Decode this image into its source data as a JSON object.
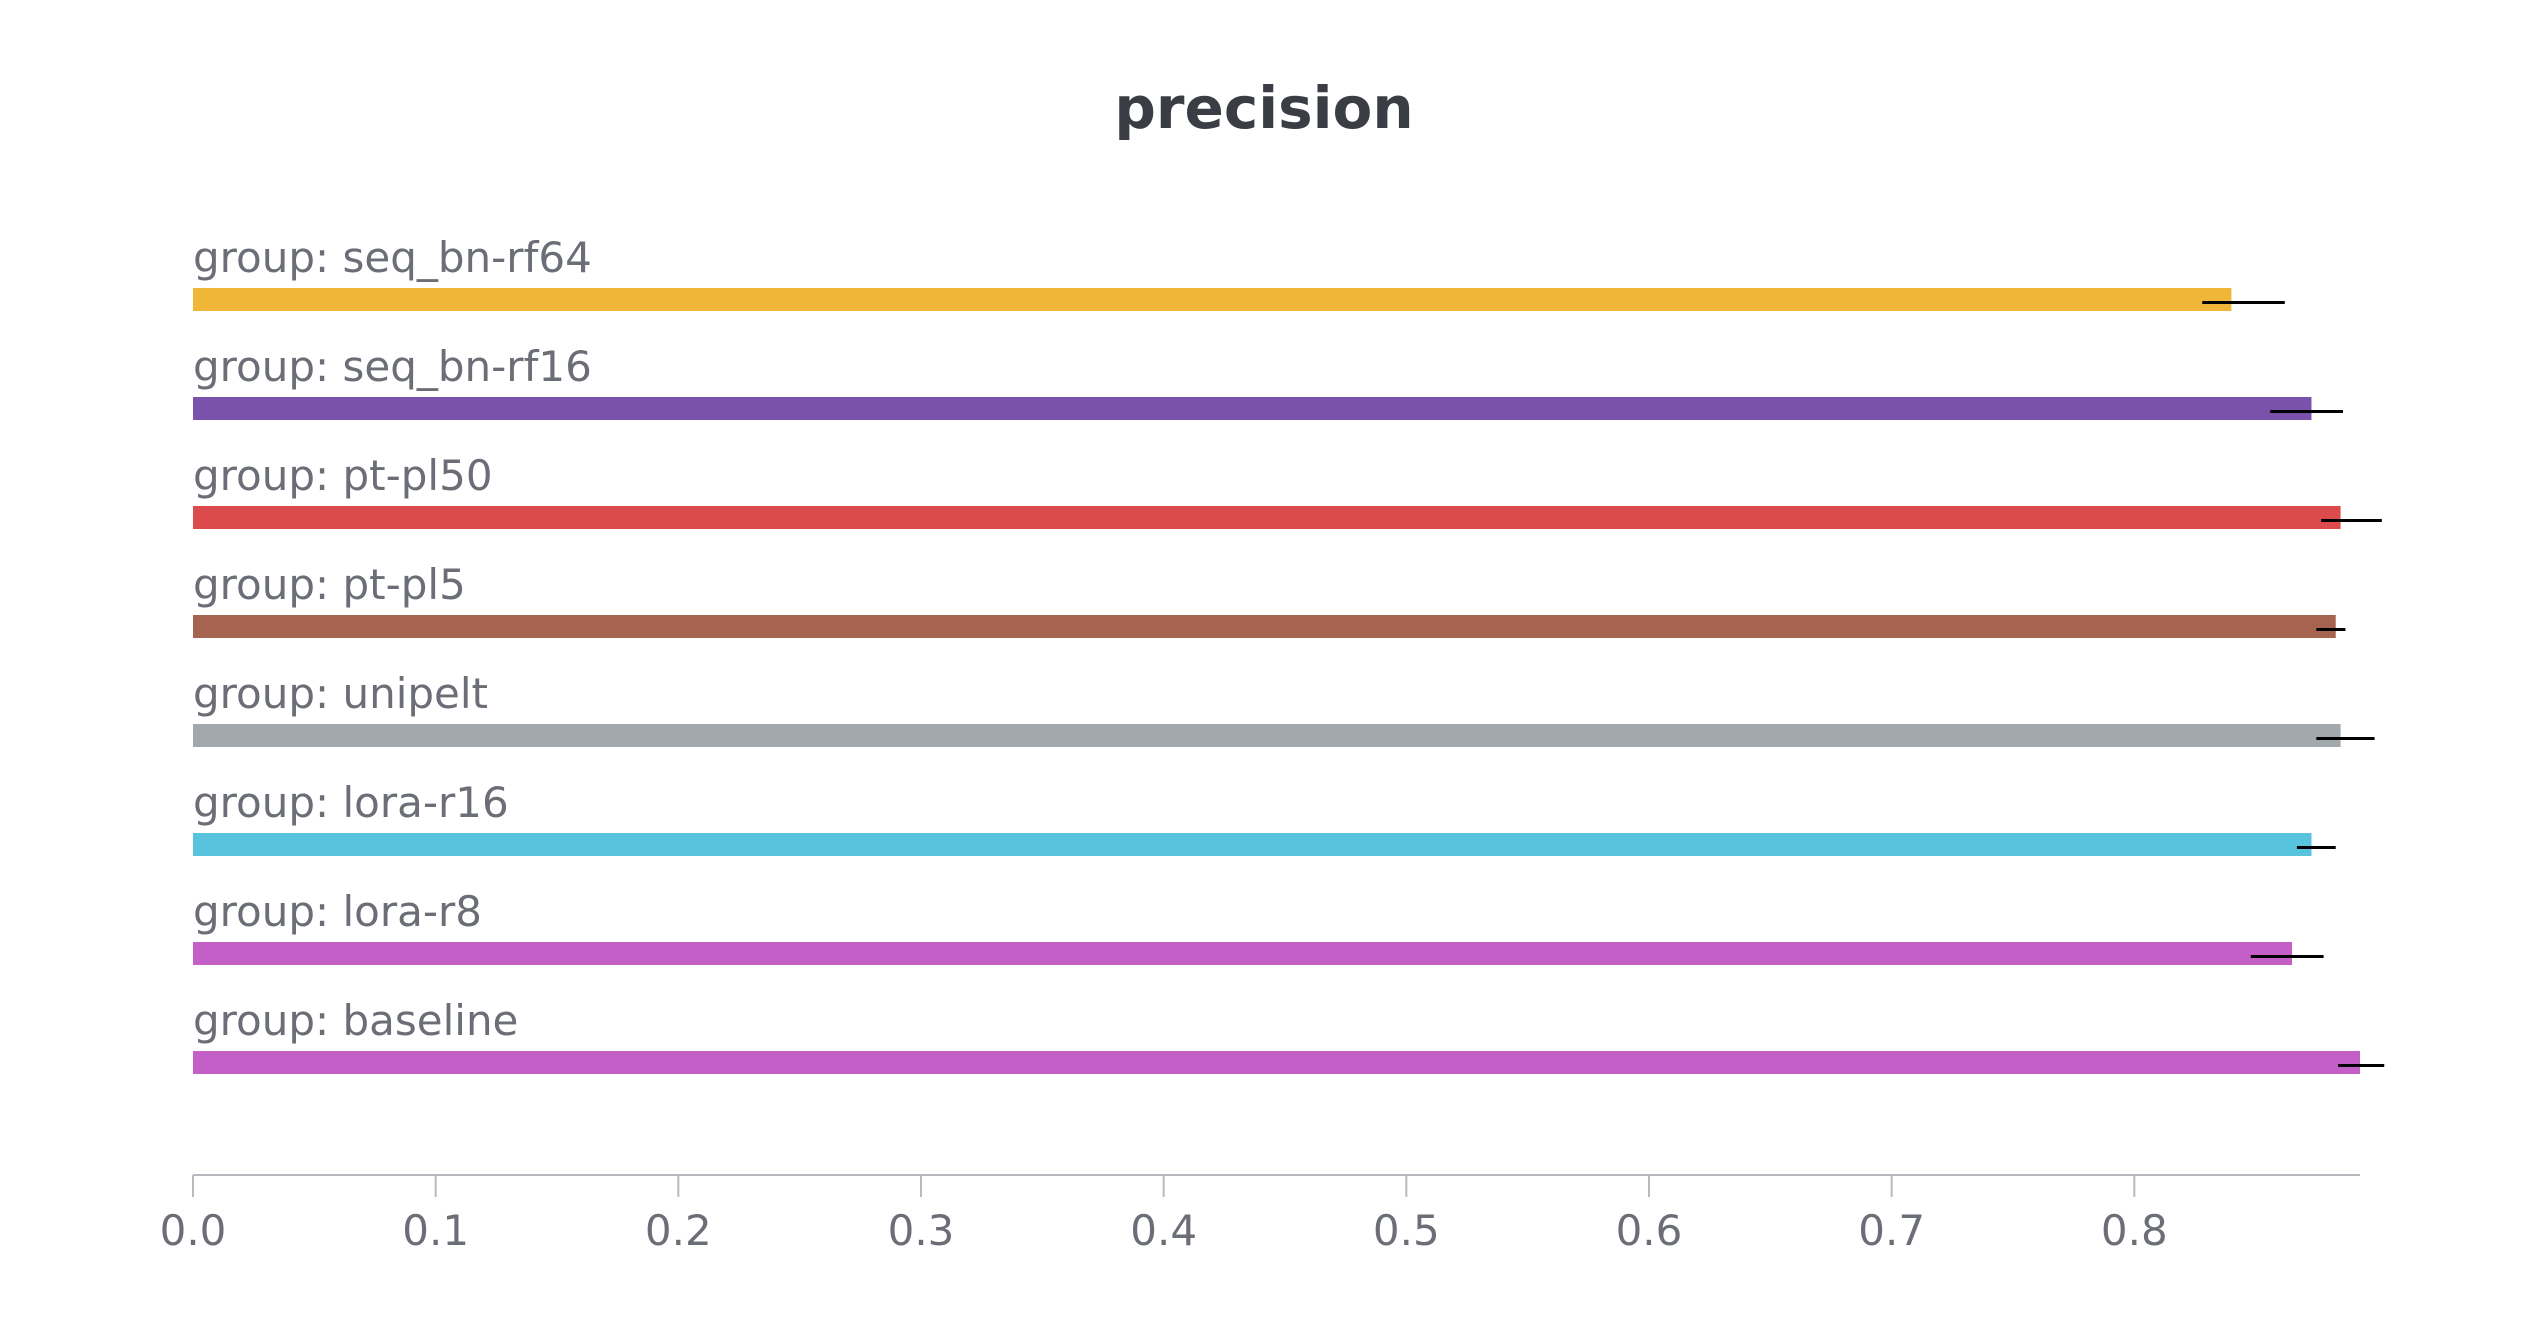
{
  "chart_data": {
    "type": "bar",
    "orientation": "horizontal",
    "title": "precision",
    "xlabel": "",
    "ylabel": "",
    "xlim": [
      0,
      0.893
    ],
    "xticks": [
      "0.0",
      "0.1",
      "0.2",
      "0.3",
      "0.4",
      "0.5",
      "0.6",
      "0.7",
      "0.8"
    ],
    "grid": false,
    "categories": [
      "group: seq_bn-rf64",
      "group: seq_bn-rf16",
      "group: pt-pl50",
      "group: pt-pl5",
      "group: unipelt",
      "group: lora-r16",
      "group: lora-r8",
      "group: baseline"
    ],
    "values": [
      0.84,
      0.873,
      0.885,
      0.883,
      0.885,
      0.873,
      0.865,
      0.893
    ],
    "error_low": [
      0.828,
      0.856,
      0.877,
      0.875,
      0.875,
      0.867,
      0.848,
      0.884
    ],
    "error_high": [
      0.862,
      0.886,
      0.902,
      0.887,
      0.899,
      0.883,
      0.878,
      0.903
    ],
    "colors": [
      "#efb637",
      "#7b52ab",
      "#db4b4b",
      "#a6634f",
      "#a2a9ac",
      "#58c3dc",
      "#c45fc7",
      "#c45fc7"
    ]
  }
}
